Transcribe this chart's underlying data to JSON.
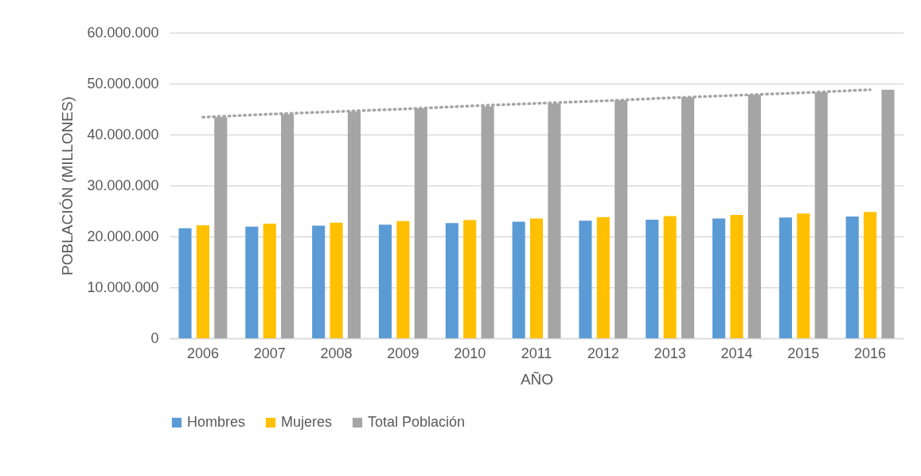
{
  "chart_data": {
    "type": "bar",
    "xlabel": "AÑO",
    "ylabel": "POBLACIÓN (MILLONES)",
    "categories": [
      "2006",
      "2007",
      "2008",
      "2009",
      "2010",
      "2011",
      "2012",
      "2013",
      "2014",
      "2015",
      "2016"
    ],
    "series": [
      {
        "name": "Hombres",
        "color": "#5b9bd5",
        "values": [
          21600000,
          21900000,
          22100000,
          22300000,
          22600000,
          22900000,
          23100000,
          23300000,
          23500000,
          23700000,
          23900000
        ]
      },
      {
        "name": "Mujeres",
        "color": "#ffc000",
        "values": [
          22200000,
          22500000,
          22700000,
          23000000,
          23200000,
          23500000,
          23800000,
          24000000,
          24200000,
          24500000,
          24800000
        ]
      },
      {
        "name": "Total Población",
        "color": "#a5a5a5",
        "values": [
          43400000,
          44000000,
          44500000,
          45100000,
          45500000,
          46100000,
          46700000,
          47300000,
          47800000,
          48300000,
          48800000
        ]
      },
      {
        "type": "line",
        "color": "#a5a5a5",
        "line_style": "dotted",
        "values": [
          43400000,
          44000000,
          44500000,
          45000000,
          45600000,
          46100000,
          46600000,
          47200000,
          47700000,
          48200000,
          48800000
        ]
      }
    ],
    "ylim": [
      0,
      60000000
    ],
    "yticks": [
      0,
      {
        "value": 10000000,
        "label": "10.000.000"
      },
      {
        "value": 20000000,
        "label": "20.000.000"
      },
      {
        "value": 30000000,
        "label": "30.000.000"
      },
      {
        "value": 40000000,
        "label": "40.000.000"
      },
      {
        "value": 50000000,
        "label": "50.000.000"
      },
      {
        "value": 60000000,
        "label": "60.000.000"
      }
    ],
    "grid": "y",
    "legend": "bottom"
  }
}
